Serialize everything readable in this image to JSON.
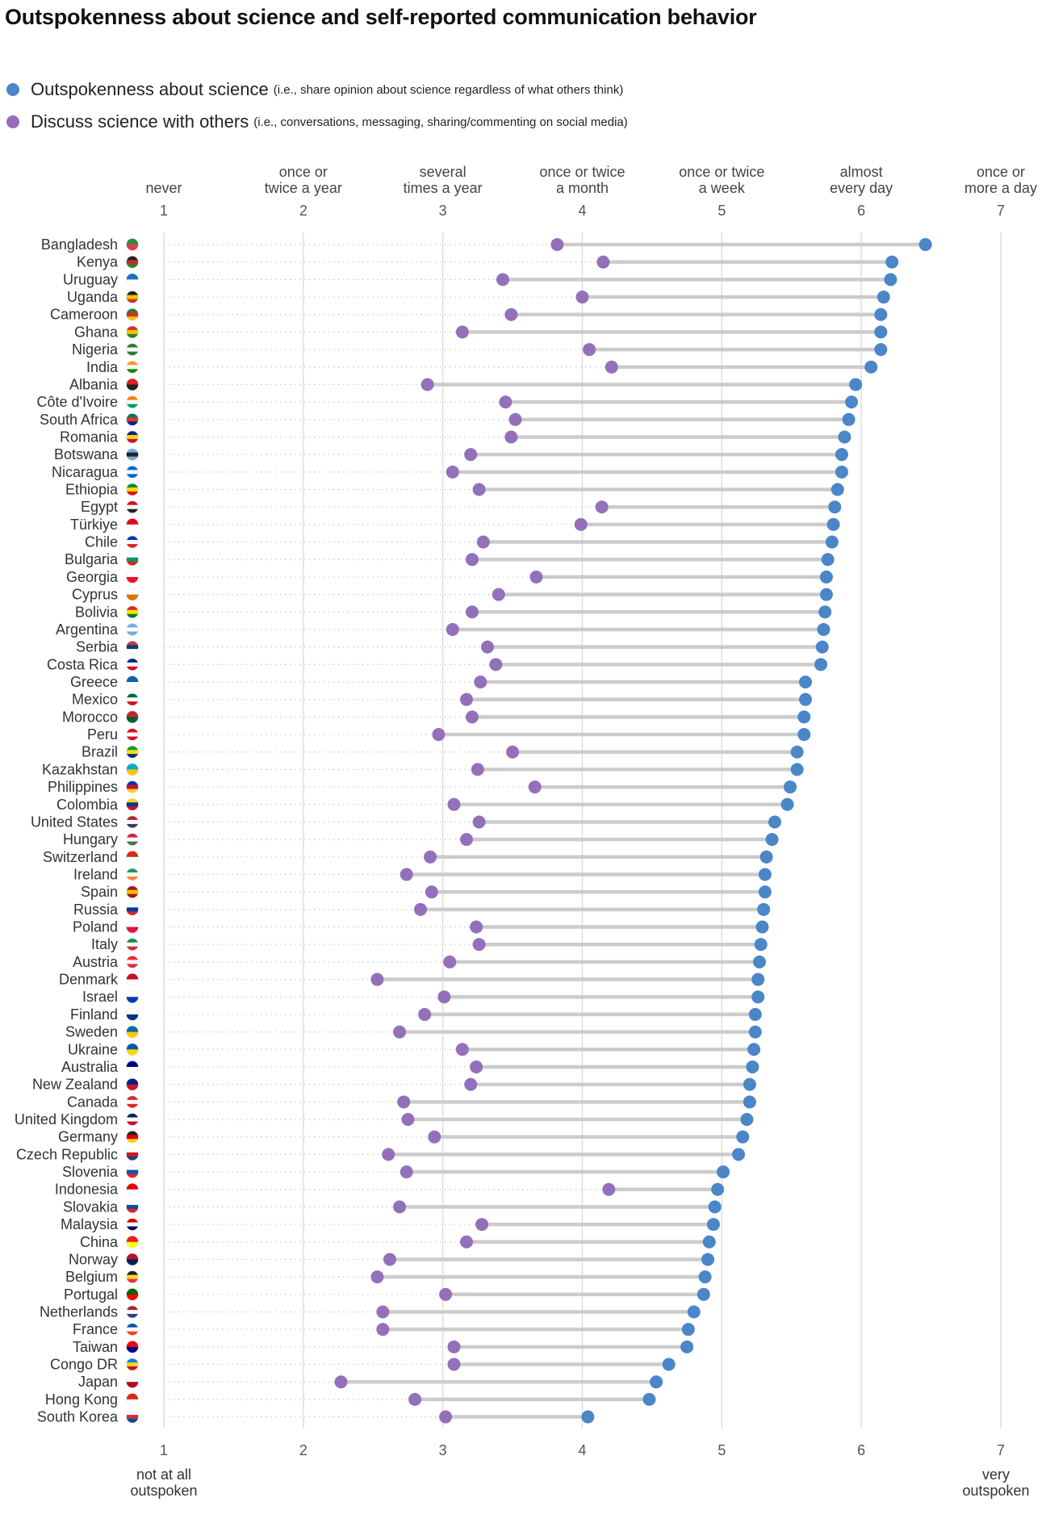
{
  "chart_data": {
    "type": "dumbbell",
    "title": "Outspokenness about science and self-reported communication behavior",
    "legend": [
      {
        "name": "Outspokenness about science",
        "note": "(i.e., share opinion about science regardless of what others think)",
        "color": "#4a86c8"
      },
      {
        "name": "Discuss science with others",
        "note": "(i.e., conversations, messaging, sharing/commenting on social media)",
        "color": "#9370b9"
      }
    ],
    "legend_placement": "top-left",
    "x_range": [
      1,
      7
    ],
    "top_axis": {
      "ticks": [
        1,
        2,
        3,
        4,
        5,
        6,
        7
      ],
      "tick_labels": [
        [
          "never"
        ],
        [
          "once or",
          "twice a year"
        ],
        [
          "several",
          "times a year"
        ],
        [
          "once or twice",
          "a month"
        ],
        [
          "once or twice",
          "a week"
        ],
        [
          "almost",
          "every day"
        ],
        [
          "once or",
          "more a day"
        ]
      ]
    },
    "bottom_axis": {
      "ticks": [
        1,
        2,
        3,
        4,
        5,
        6,
        7
      ],
      "end_labels": {
        "low": [
          "not at all",
          "outspoken"
        ],
        "high": [
          "very",
          "outspoken"
        ]
      }
    },
    "grid": true,
    "categories": [
      "Bangladesh",
      "Kenya",
      "Uruguay",
      "Uganda",
      "Cameroon",
      "Ghana",
      "Nigeria",
      "India",
      "Albania",
      "Côte d'Ivoire",
      "South Africa",
      "Romania",
      "Botswana",
      "Nicaragua",
      "Ethiopia",
      "Egypt",
      "Türkiye",
      "Chile",
      "Bulgaria",
      "Georgia",
      "Cyprus",
      "Bolivia",
      "Argentina",
      "Serbia",
      "Costa Rica",
      "Greece",
      "Mexico",
      "Morocco",
      "Peru",
      "Brazil",
      "Kazakhstan",
      "Philippines",
      "Colombia",
      "United States",
      "Hungary",
      "Switzerland",
      "Ireland",
      "Spain",
      "Russia",
      "Poland",
      "Italy",
      "Austria",
      "Denmark",
      "Israel",
      "Finland",
      "Sweden",
      "Ukraine",
      "Australia",
      "New Zealand",
      "Canada",
      "United Kingdom",
      "Germany",
      "Czech Republic",
      "Slovenia",
      "Indonesia",
      "Slovakia",
      "Malaysia",
      "China",
      "Norway",
      "Belgium",
      "Portugal",
      "Netherlands",
      "France",
      "Taiwan",
      "Congo DR",
      "Japan",
      "Hong Kong",
      "South Korea"
    ],
    "series": [
      {
        "name": "Outspokenness about science",
        "color": "#4a86c8",
        "values": [
          6.46,
          6.22,
          6.21,
          6.16,
          6.14,
          6.14,
          6.14,
          6.07,
          5.96,
          5.93,
          5.91,
          5.88,
          5.86,
          5.86,
          5.83,
          5.81,
          5.8,
          5.79,
          5.76,
          5.75,
          5.75,
          5.74,
          5.73,
          5.72,
          5.71,
          5.6,
          5.6,
          5.59,
          5.59,
          5.54,
          5.54,
          5.49,
          5.47,
          5.38,
          5.36,
          5.32,
          5.31,
          5.31,
          5.3,
          5.29,
          5.28,
          5.27,
          5.26,
          5.26,
          5.24,
          5.24,
          5.23,
          5.22,
          5.2,
          5.2,
          5.18,
          5.15,
          5.12,
          5.01,
          4.97,
          4.95,
          4.94,
          4.91,
          4.9,
          4.88,
          4.87,
          4.8,
          4.76,
          4.75,
          4.62,
          4.53,
          4.48,
          4.04
        ]
      },
      {
        "name": "Discuss science with others",
        "color": "#9370b9",
        "values": [
          3.82,
          4.15,
          3.43,
          4.0,
          3.49,
          3.14,
          4.05,
          4.21,
          2.89,
          3.45,
          3.52,
          3.49,
          3.2,
          3.07,
          3.26,
          4.14,
          3.99,
          3.29,
          3.21,
          3.67,
          3.4,
          3.21,
          3.07,
          3.32,
          3.38,
          3.27,
          3.17,
          3.21,
          2.97,
          3.5,
          3.25,
          3.66,
          3.08,
          3.26,
          3.17,
          2.91,
          2.74,
          2.92,
          2.84,
          3.24,
          3.26,
          3.05,
          2.53,
          3.01,
          2.87,
          2.69,
          3.14,
          3.24,
          3.2,
          2.72,
          2.75,
          2.94,
          2.61,
          2.74,
          4.19,
          2.69,
          3.28,
          3.17,
          2.62,
          2.53,
          3.02,
          2.57,
          2.57,
          3.08,
          3.08,
          2.27,
          2.8,
          3.02
        ]
      }
    ],
    "flag_colors": {
      "Bangladesh": [
        "#2e8b3e",
        "#e63946"
      ],
      "Kenya": [
        "#222",
        "#c62828",
        "#2e7d32"
      ],
      "Uruguay": [
        "#1e6fb8",
        "#fff"
      ],
      "Uganda": [
        "#222",
        "#f5c400",
        "#d32f2f"
      ],
      "Cameroon": [
        "#2e7d32",
        "#d32f2f",
        "#f5c400"
      ],
      "Ghana": [
        "#d32f2f",
        "#f5c400",
        "#2e7d32"
      ],
      "Nigeria": [
        "#2e7d32",
        "#fff",
        "#2e7d32"
      ],
      "India": [
        "#ff9933",
        "#fff",
        "#138808"
      ],
      "Albania": [
        "#e41e20",
        "#222"
      ],
      "Côte d'Ivoire": [
        "#f77f00",
        "#fff",
        "#009e60"
      ],
      "South Africa": [
        "#007a4d",
        "#de3831",
        "#002395"
      ],
      "Romania": [
        "#002b7f",
        "#fcd116",
        "#ce1126"
      ],
      "Botswana": [
        "#75aadb",
        "#222",
        "#75aadb"
      ],
      "Nicaragua": [
        "#0067c6",
        "#fff",
        "#0067c6"
      ],
      "Ethiopia": [
        "#078930",
        "#fcdd09",
        "#da121a"
      ],
      "Egypt": [
        "#ce1126",
        "#fff",
        "#222"
      ],
      "Türkiye": [
        "#e30a17",
        "#fff"
      ],
      "Chile": [
        "#0039a6",
        "#fff",
        "#d52b1e"
      ],
      "Bulgaria": [
        "#fff",
        "#00966e",
        "#d62612"
      ],
      "Georgia": [
        "#fff",
        "#e8112d"
      ],
      "Cyprus": [
        "#fff",
        "#d57800"
      ],
      "Bolivia": [
        "#d52b1e",
        "#f9e300",
        "#007934"
      ],
      "Argentina": [
        "#74acdf",
        "#fff",
        "#74acdf"
      ],
      "Serbia": [
        "#c6363c",
        "#0c4076",
        "#fff"
      ],
      "Costa Rica": [
        "#002b7f",
        "#fff",
        "#ce1126"
      ],
      "Greece": [
        "#0d5eaf",
        "#fff"
      ],
      "Mexico": [
        "#006847",
        "#fff",
        "#ce1126"
      ],
      "Morocco": [
        "#c1272d",
        "#006233"
      ],
      "Peru": [
        "#d91023",
        "#fff",
        "#d91023"
      ],
      "Brazil": [
        "#009c3b",
        "#ffdf00",
        "#002776"
      ],
      "Kazakhstan": [
        "#00afca",
        "#fec50c"
      ],
      "Philippines": [
        "#0038a8",
        "#ce1126",
        "#fcd116"
      ],
      "Colombia": [
        "#fcd116",
        "#003893",
        "#ce1126"
      ],
      "United States": [
        "#b22234",
        "#fff",
        "#3c3b6e"
      ],
      "Hungary": [
        "#ce2939",
        "#fff",
        "#477050"
      ],
      "Switzerland": [
        "#d52b1e",
        "#fff"
      ],
      "Ireland": [
        "#169b62",
        "#fff",
        "#ff883e"
      ],
      "Spain": [
        "#aa151b",
        "#f1bf00",
        "#aa151b"
      ],
      "Russia": [
        "#fff",
        "#0039a6",
        "#d52b1e"
      ],
      "Poland": [
        "#fff",
        "#dc143c"
      ],
      "Italy": [
        "#009246",
        "#fff",
        "#ce2b37"
      ],
      "Austria": [
        "#ed2939",
        "#fff",
        "#ed2939"
      ],
      "Denmark": [
        "#c8102e",
        "#fff"
      ],
      "Israel": [
        "#fff",
        "#0038b8"
      ],
      "Finland": [
        "#fff",
        "#003580"
      ],
      "Sweden": [
        "#006aa7",
        "#fecc00"
      ],
      "Ukraine": [
        "#0057b7",
        "#ffd700"
      ],
      "Australia": [
        "#00008b",
        "#fff"
      ],
      "New Zealand": [
        "#00247d",
        "#cc142b"
      ],
      "Canada": [
        "#d52b1e",
        "#fff",
        "#d52b1e"
      ],
      "United Kingdom": [
        "#012169",
        "#fff",
        "#c8102e"
      ],
      "Germany": [
        "#222",
        "#dd0000",
        "#ffce00"
      ],
      "Czech Republic": [
        "#fff",
        "#d7141a",
        "#11457e"
      ],
      "Slovenia": [
        "#fff",
        "#005da4",
        "#ed1c24"
      ],
      "Indonesia": [
        "#e70011",
        "#fff"
      ],
      "Slovakia": [
        "#fff",
        "#0b4ea2",
        "#ee1c25"
      ],
      "Malaysia": [
        "#cc0001",
        "#fff",
        "#010066"
      ],
      "China": [
        "#ee1c25",
        "#ffff00"
      ],
      "Norway": [
        "#ba0c2f",
        "#00205b"
      ],
      "Belgium": [
        "#222",
        "#fdda24",
        "#ef3340"
      ],
      "Portugal": [
        "#006600",
        "#ff0000"
      ],
      "Netherlands": [
        "#ae1c28",
        "#fff",
        "#21468b"
      ],
      "France": [
        "#0055a4",
        "#fff",
        "#ef4135"
      ],
      "Taiwan": [
        "#fe0000",
        "#000095"
      ],
      "Congo DR": [
        "#007fff",
        "#f7d618",
        "#ce1021"
      ],
      "Japan": [
        "#fff",
        "#bc002d"
      ],
      "Hong Kong": [
        "#de2910",
        "#fff"
      ],
      "South Korea": [
        "#fff",
        "#cd2e3a",
        "#0047a0"
      ]
    }
  }
}
